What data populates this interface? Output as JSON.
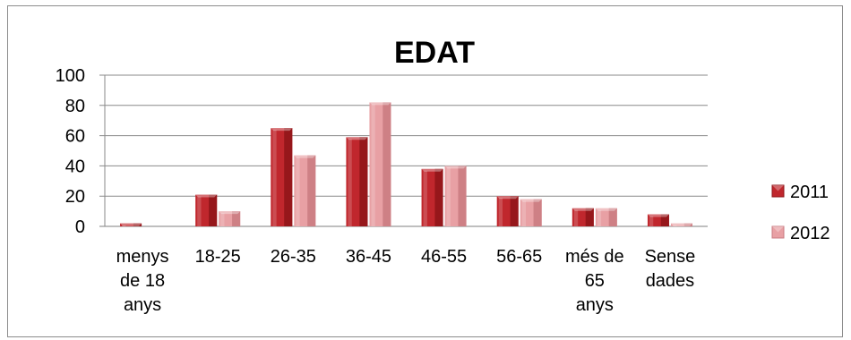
{
  "chart_data": {
    "type": "bar",
    "title": "EDAT",
    "categories": [
      [
        "menys",
        "de 18",
        "anys"
      ],
      [
        "18-25"
      ],
      [
        "26-35"
      ],
      [
        "36-45"
      ],
      [
        "46-55"
      ],
      [
        "56-65"
      ],
      [
        "més de",
        "65",
        "anys"
      ],
      [
        "Sense",
        "dades"
      ]
    ],
    "series": [
      {
        "name": "2011",
        "values": [
          2,
          21,
          65,
          59,
          38,
          20,
          12,
          8
        ],
        "color": "#c0272d",
        "side_color": "#8e1519"
      },
      {
        "name": "2012",
        "values": [
          0,
          10,
          47,
          82,
          40,
          18,
          12,
          2
        ],
        "color": "#e8a0a4",
        "side_color": "#c97a80"
      }
    ],
    "ylim": [
      0,
      100
    ],
    "yticks": [
      0,
      20,
      40,
      60,
      80,
      100
    ],
    "grid": true,
    "legend_position": "right"
  }
}
